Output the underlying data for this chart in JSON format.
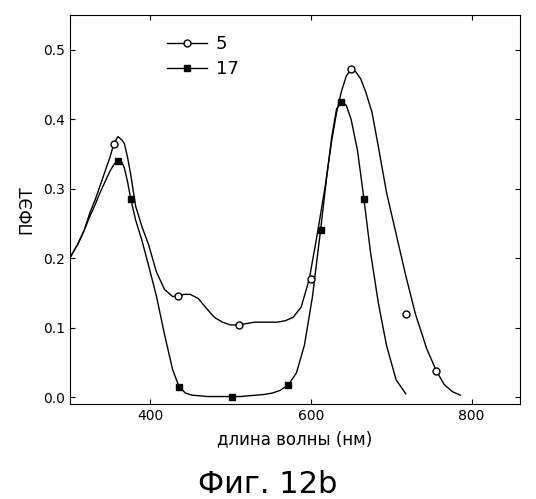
{
  "title": "Фиг. 12b",
  "xlabel": "длина волны (нм)",
  "ylabel": "ПФЭТ",
  "xlim": [
    300,
    860
  ],
  "ylim": [
    -0.01,
    0.55
  ],
  "yticks": [
    0.0,
    0.1,
    0.2,
    0.3,
    0.4,
    0.5
  ],
  "xticks": [
    400,
    600,
    800
  ],
  "series5_x": [
    300,
    310,
    318,
    325,
    332,
    338,
    344,
    350,
    355,
    360,
    365,
    368,
    372,
    376,
    382,
    390,
    398,
    408,
    418,
    428,
    435,
    442,
    450,
    460,
    470,
    480,
    490,
    500,
    510,
    520,
    530,
    540,
    548,
    558,
    568,
    578,
    588,
    598,
    608,
    618,
    626,
    632,
    638,
    644,
    650,
    656,
    662,
    668,
    676,
    684,
    694,
    706,
    718,
    730,
    744,
    756,
    766,
    776,
    786
  ],
  "series5_y": [
    0.2,
    0.22,
    0.24,
    0.265,
    0.285,
    0.305,
    0.325,
    0.345,
    0.365,
    0.375,
    0.37,
    0.365,
    0.345,
    0.32,
    0.275,
    0.245,
    0.22,
    0.18,
    0.155,
    0.145,
    0.145,
    0.148,
    0.148,
    0.142,
    0.128,
    0.115,
    0.108,
    0.104,
    0.104,
    0.106,
    0.108,
    0.108,
    0.108,
    0.108,
    0.11,
    0.115,
    0.13,
    0.17,
    0.235,
    0.305,
    0.37,
    0.41,
    0.44,
    0.462,
    0.472,
    0.468,
    0.458,
    0.44,
    0.41,
    0.36,
    0.295,
    0.235,
    0.175,
    0.12,
    0.07,
    0.038,
    0.018,
    0.008,
    0.003
  ],
  "series17_x": [
    300,
    310,
    318,
    325,
    332,
    338,
    344,
    350,
    355,
    360,
    365,
    368,
    372,
    376,
    382,
    390,
    398,
    408,
    418,
    428,
    436,
    444,
    452,
    462,
    472,
    482,
    492,
    502,
    512,
    522,
    532,
    542,
    552,
    562,
    572,
    582,
    592,
    602,
    612,
    620,
    626,
    632,
    638,
    644,
    650,
    658,
    666,
    674,
    684,
    694,
    706,
    718
  ],
  "series17_y": [
    0.2,
    0.22,
    0.24,
    0.26,
    0.278,
    0.295,
    0.31,
    0.325,
    0.335,
    0.34,
    0.338,
    0.33,
    0.31,
    0.285,
    0.255,
    0.225,
    0.19,
    0.145,
    0.09,
    0.04,
    0.015,
    0.006,
    0.003,
    0.002,
    0.001,
    0.001,
    0.001,
    0.001,
    0.001,
    0.002,
    0.003,
    0.004,
    0.006,
    0.01,
    0.018,
    0.035,
    0.075,
    0.145,
    0.24,
    0.32,
    0.375,
    0.415,
    0.425,
    0.42,
    0.4,
    0.355,
    0.285,
    0.21,
    0.135,
    0.075,
    0.025,
    0.005
  ],
  "marker5_x": [
    355,
    435,
    510,
    600,
    650,
    718,
    756
  ],
  "marker5_y": [
    0.365,
    0.145,
    0.104,
    0.17,
    0.472,
    0.12,
    0.038
  ],
  "marker17_x": [
    360,
    376,
    436,
    502,
    572,
    612,
    638,
    666
  ],
  "marker17_y": [
    0.34,
    0.285,
    0.015,
    0.001,
    0.018,
    0.24,
    0.425,
    0.285
  ],
  "line_color": "#000000",
  "bg_color": "#ffffff",
  "legend_labels": [
    "5",
    "17"
  ],
  "title_fontsize": 22,
  "xlabel_fontsize": 12,
  "ylabel_fontsize": 12
}
